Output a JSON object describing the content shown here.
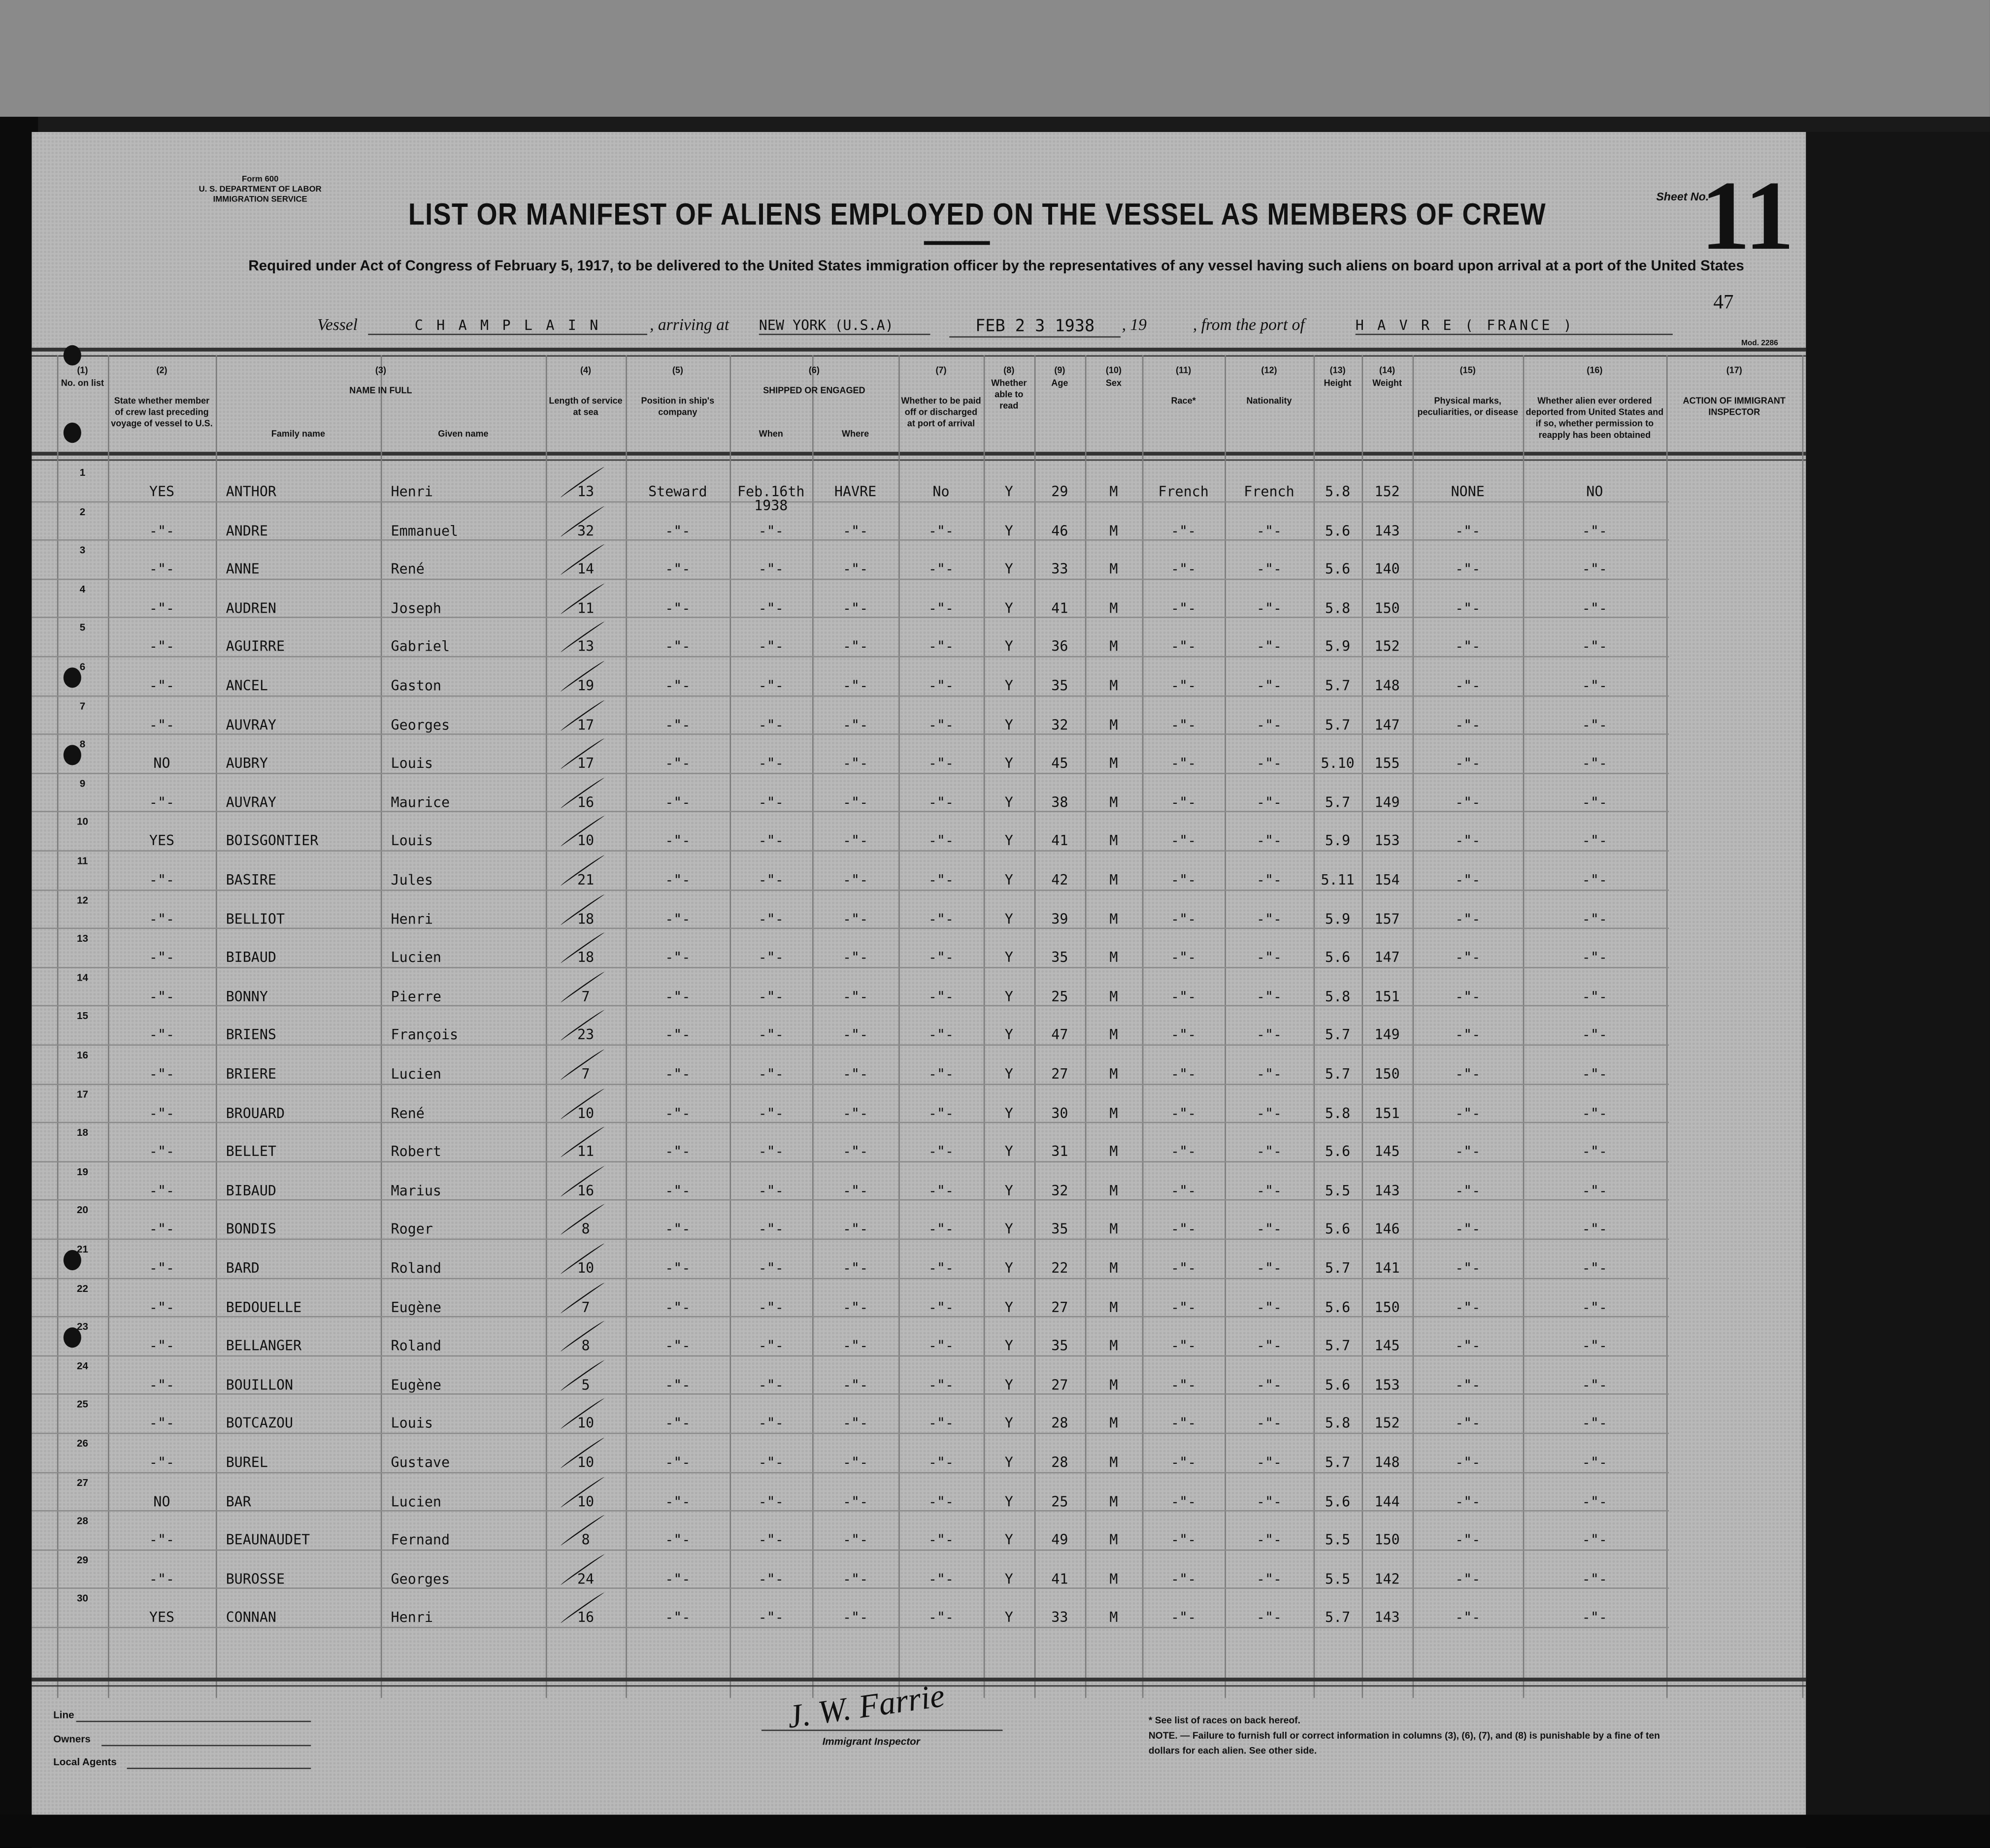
{
  "form": {
    "number_label": "Form 600",
    "department": "U. S. DEPARTMENT OF LABOR",
    "service": "IMMIGRATION SERVICE",
    "mod": "Mod. 2286"
  },
  "title": "LIST OR MANIFEST OF ALIENS EMPLOYED ON THE VESSEL AS MEMBERS OF CREW",
  "subtitle": "Required under Act of Congress of February 5, 1917, to be delivered to the United States immigration officer by the representatives of any vessel having such aliens on board upon arrival at a port of the United States",
  "sheet": {
    "label": "Sheet No.",
    "number": "11",
    "stamp": "47"
  },
  "voyage": {
    "vessel_label": "Vessel",
    "vessel": "C H A M P L A I N",
    "arriving_label": ", arriving at",
    "arriving": "NEW YORK (U.S.A)",
    "date": "FEB 2 3 1938",
    "year_label": ", 19",
    "from_label": ", from the port of",
    "port": "H A V R E  ( FRANCE )"
  },
  "columns": [
    {
      "num": "(1)",
      "label": "No. on list"
    },
    {
      "num": "(2)",
      "label": "State whether member of crew last preceding voyage of vessel to U.S."
    },
    {
      "num": "(3)",
      "label": "NAME IN FULL",
      "sub": [
        "Family name",
        "Given name"
      ]
    },
    {
      "num": "(4)",
      "label": "Length of service at sea"
    },
    {
      "num": "(5)",
      "label": "Position in ship's company"
    },
    {
      "num": "(6)",
      "label": "SHIPPED OR ENGAGED",
      "sub": [
        "When",
        "Where"
      ]
    },
    {
      "num": "(7)",
      "label": "Whether to be paid off or discharged at port of arrival"
    },
    {
      "num": "(8)",
      "label": "Whether able to read"
    },
    {
      "num": "(9)",
      "label": "Age"
    },
    {
      "num": "(10)",
      "label": "Sex"
    },
    {
      "num": "(11)",
      "label": "Race*"
    },
    {
      "num": "(12)",
      "label": "Nationality"
    },
    {
      "num": "(13)",
      "label": "Height"
    },
    {
      "num": "(14)",
      "label": "Weight"
    },
    {
      "num": "(15)",
      "label": "Physical marks, peculiarities, or disease"
    },
    {
      "num": "(16)",
      "label": "Whether alien ever ordered deported from United States and if so, whether permission to reapply has been obtained"
    },
    {
      "num": "(17)",
      "label": "ACTION OF IMMIGRANT INSPECTOR"
    }
  ],
  "rows": [
    [
      "1",
      "YES",
      "ANTHOR",
      "Henri",
      "13",
      "Steward",
      "Feb.16th\n1938",
      "HAVRE",
      "No",
      "Y",
      "29",
      "M",
      "French",
      "French",
      "5.8",
      "152",
      "NONE",
      "NO"
    ],
    [
      "2",
      "-\"-",
      "ANDRE",
      "Emmanuel",
      "32",
      "-\"-",
      "-\"-",
      "-\"-",
      "-\"-",
      "Y",
      "46",
      "M",
      "-\"-",
      "-\"-",
      "5.6",
      "143",
      "-\"-",
      "-\"-"
    ],
    [
      "3",
      "-\"-",
      "ANNE",
      "René",
      "14",
      "-\"-",
      "-\"-",
      "-\"-",
      "-\"-",
      "Y",
      "33",
      "M",
      "-\"-",
      "-\"-",
      "5.6",
      "140",
      "-\"-",
      "-\"-"
    ],
    [
      "4",
      "-\"-",
      "AUDREN",
      "Joseph",
      "11",
      "-\"-",
      "-\"-",
      "-\"-",
      "-\"-",
      "Y",
      "41",
      "M",
      "-\"-",
      "-\"-",
      "5.8",
      "150",
      "-\"-",
      "-\"-"
    ],
    [
      "5",
      "-\"-",
      "AGUIRRE",
      "Gabriel",
      "13",
      "-\"-",
      "-\"-",
      "-\"-",
      "-\"-",
      "Y",
      "36",
      "M",
      "-\"-",
      "-\"-",
      "5.9",
      "152",
      "-\"-",
      "-\"-"
    ],
    [
      "6",
      "-\"-",
      "ANCEL",
      "Gaston",
      "19",
      "-\"-",
      "-\"-",
      "-\"-",
      "-\"-",
      "Y",
      "35",
      "M",
      "-\"-",
      "-\"-",
      "5.7",
      "148",
      "-\"-",
      "-\"-"
    ],
    [
      "7",
      "-\"-",
      "AUVRAY",
      "Georges",
      "17",
      "-\"-",
      "-\"-",
      "-\"-",
      "-\"-",
      "Y",
      "32",
      "M",
      "-\"-",
      "-\"-",
      "5.7",
      "147",
      "-\"-",
      "-\"-"
    ],
    [
      "8",
      "NO",
      "AUBRY",
      "Louis",
      "17",
      "-\"-",
      "-\"-",
      "-\"-",
      "-\"-",
      "Y",
      "45",
      "M",
      "-\"-",
      "-\"-",
      "5.10",
      "155",
      "-\"-",
      "-\"-"
    ],
    [
      "9",
      "-\"-",
      "AUVRAY",
      "Maurice",
      "16",
      "-\"-",
      "-\"-",
      "-\"-",
      "-\"-",
      "Y",
      "38",
      "M",
      "-\"-",
      "-\"-",
      "5.7",
      "149",
      "-\"-",
      "-\"-"
    ],
    [
      "10",
      "YES",
      "BOISGONTIER",
      "Louis",
      "10",
      "-\"-",
      "-\"-",
      "-\"-",
      "-\"-",
      "Y",
      "41",
      "M",
      "-\"-",
      "-\"-",
      "5.9",
      "153",
      "-\"-",
      "-\"-"
    ],
    [
      "11",
      "-\"-",
      "BASIRE",
      "Jules",
      "21",
      "-\"-",
      "-\"-",
      "-\"-",
      "-\"-",
      "Y",
      "42",
      "M",
      "-\"-",
      "-\"-",
      "5.11",
      "154",
      "-\"-",
      "-\"-"
    ],
    [
      "12",
      "-\"-",
      "BELLIOT",
      "Henri",
      "18",
      "-\"-",
      "-\"-",
      "-\"-",
      "-\"-",
      "Y",
      "39",
      "M",
      "-\"-",
      "-\"-",
      "5.9",
      "157",
      "-\"-",
      "-\"-"
    ],
    [
      "13",
      "-\"-",
      "BIBAUD",
      "Lucien",
      "18",
      "-\"-",
      "-\"-",
      "-\"-",
      "-\"-",
      "Y",
      "35",
      "M",
      "-\"-",
      "-\"-",
      "5.6",
      "147",
      "-\"-",
      "-\"-"
    ],
    [
      "14",
      "-\"-",
      "BONNY",
      "Pierre",
      "7",
      "-\"-",
      "-\"-",
      "-\"-",
      "-\"-",
      "Y",
      "25",
      "M",
      "-\"-",
      "-\"-",
      "5.8",
      "151",
      "-\"-",
      "-\"-"
    ],
    [
      "15",
      "-\"-",
      "BRIENS",
      "François",
      "23",
      "-\"-",
      "-\"-",
      "-\"-",
      "-\"-",
      "Y",
      "47",
      "M",
      "-\"-",
      "-\"-",
      "5.7",
      "149",
      "-\"-",
      "-\"-"
    ],
    [
      "16",
      "-\"-",
      "BRIERE",
      "Lucien",
      "7",
      "-\"-",
      "-\"-",
      "-\"-",
      "-\"-",
      "Y",
      "27",
      "M",
      "-\"-",
      "-\"-",
      "5.7",
      "150",
      "-\"-",
      "-\"-"
    ],
    [
      "17",
      "-\"-",
      "BROUARD",
      "René",
      "10",
      "-\"-",
      "-\"-",
      "-\"-",
      "-\"-",
      "Y",
      "30",
      "M",
      "-\"-",
      "-\"-",
      "5.8",
      "151",
      "-\"-",
      "-\"-"
    ],
    [
      "18",
      "-\"-",
      "BELLET",
      "Robert",
      "11",
      "-\"-",
      "-\"-",
      "-\"-",
      "-\"-",
      "Y",
      "31",
      "M",
      "-\"-",
      "-\"-",
      "5.6",
      "145",
      "-\"-",
      "-\"-"
    ],
    [
      "19",
      "-\"-",
      "BIBAUD",
      "Marius",
      "16",
      "-\"-",
      "-\"-",
      "-\"-",
      "-\"-",
      "Y",
      "32",
      "M",
      "-\"-",
      "-\"-",
      "5.5",
      "143",
      "-\"-",
      "-\"-"
    ],
    [
      "20",
      "-\"-",
      "BONDIS",
      "Roger",
      "8",
      "-\"-",
      "-\"-",
      "-\"-",
      "-\"-",
      "Y",
      "35",
      "M",
      "-\"-",
      "-\"-",
      "5.6",
      "146",
      "-\"-",
      "-\"-"
    ],
    [
      "21",
      "-\"-",
      "BARD",
      "Roland",
      "10",
      "-\"-",
      "-\"-",
      "-\"-",
      "-\"-",
      "Y",
      "22",
      "M",
      "-\"-",
      "-\"-",
      "5.7",
      "141",
      "-\"-",
      "-\"-"
    ],
    [
      "22",
      "-\"-",
      "BEDOUELLE",
      "Eugène",
      "7",
      "-\"-",
      "-\"-",
      "-\"-",
      "-\"-",
      "Y",
      "27",
      "M",
      "-\"-",
      "-\"-",
      "5.6",
      "150",
      "-\"-",
      "-\"-"
    ],
    [
      "23",
      "-\"-",
      "BELLANGER",
      "Roland",
      "8",
      "-\"-",
      "-\"-",
      "-\"-",
      "-\"-",
      "Y",
      "35",
      "M",
      "-\"-",
      "-\"-",
      "5.7",
      "145",
      "-\"-",
      "-\"-"
    ],
    [
      "24",
      "-\"-",
      "BOUILLON",
      "Eugène",
      "5",
      "-\"-",
      "-\"-",
      "-\"-",
      "-\"-",
      "Y",
      "27",
      "M",
      "-\"-",
      "-\"-",
      "5.6",
      "153",
      "-\"-",
      "-\"-"
    ],
    [
      "25",
      "-\"-",
      "BOTCAZOU",
      "Louis",
      "10",
      "-\"-",
      "-\"-",
      "-\"-",
      "-\"-",
      "Y",
      "28",
      "M",
      "-\"-",
      "-\"-",
      "5.8",
      "152",
      "-\"-",
      "-\"-"
    ],
    [
      "26",
      "-\"-",
      "BUREL",
      "Gustave",
      "10",
      "-\"-",
      "-\"-",
      "-\"-",
      "-\"-",
      "Y",
      "28",
      "M",
      "-\"-",
      "-\"-",
      "5.7",
      "148",
      "-\"-",
      "-\"-"
    ],
    [
      "27",
      "NO",
      "BAR",
      "Lucien",
      "10",
      "-\"-",
      "-\"-",
      "-\"-",
      "-\"-",
      "Y",
      "25",
      "M",
      "-\"-",
      "-\"-",
      "5.6",
      "144",
      "-\"-",
      "-\"-"
    ],
    [
      "28",
      "-\"-",
      "BEAUNAUDET",
      "Fernand",
      "8",
      "-\"-",
      "-\"-",
      "-\"-",
      "-\"-",
      "Y",
      "49",
      "M",
      "-\"-",
      "-\"-",
      "5.5",
      "150",
      "-\"-",
      "-\"-"
    ],
    [
      "29",
      "-\"-",
      "BUROSSE",
      "Georges",
      "24",
      "-\"-",
      "-\"-",
      "-\"-",
      "-\"-",
      "Y",
      "41",
      "M",
      "-\"-",
      "-\"-",
      "5.5",
      "142",
      "-\"-",
      "-\"-"
    ],
    [
      "30",
      "YES",
      "CONNAN",
      "Henri",
      "16",
      "-\"-",
      "-\"-",
      "-\"-",
      "-\"-",
      "Y",
      "33",
      "M",
      "-\"-",
      "-\"-",
      "5.7",
      "143",
      "-\"-",
      "-\"-"
    ]
  ],
  "footer": {
    "line_label": "Line",
    "owners_label": "Owners",
    "agents_label": "Local Agents",
    "signature": "J. W. Farrie",
    "inspector_label": "Immigrant Inspector",
    "races_note": "* See list of races on back hereof.",
    "note": "NOTE. — Failure to furnish full or correct information in columns (3), (6), (7), and (8) is punishable by a fine of ten dollars for each alien. See other side."
  }
}
